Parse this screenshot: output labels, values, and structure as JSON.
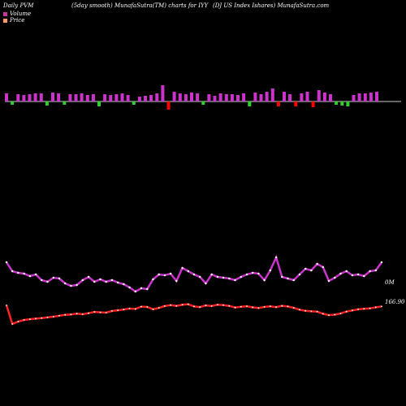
{
  "header": {
    "left": "Daily PVM",
    "center": "(5day smooth) MunafaSutra(TM) charts for IYY",
    "right": "(DJ US Index Ishares) MunafaSutra.com"
  },
  "legend": [
    {
      "label": "Volume",
      "color": "#cc3399"
    },
    {
      "label": "Price",
      "color": "#ff9966"
    }
  ],
  "chart_data": {
    "type": "bar",
    "volume_bars": {
      "heights": [
        10,
        7,
        9,
        8,
        9,
        10,
        10,
        9,
        11,
        10,
        8,
        9,
        9,
        10,
        8,
        9,
        10,
        9,
        8,
        9,
        10,
        8,
        7,
        6,
        7,
        8,
        10,
        20,
        18,
        12,
        10,
        9,
        11,
        10,
        8,
        9,
        7,
        10,
        9,
        9,
        8,
        10,
        11,
        11,
        9,
        12,
        16,
        11,
        12,
        9,
        11,
        10,
        12,
        13,
        14,
        11,
        9,
        8,
        9,
        10,
        8,
        10,
        10,
        11,
        12
      ],
      "colors": [
        "m",
        "g",
        "m",
        "m",
        "m",
        "m",
        "m",
        "g",
        "m",
        "m",
        "g",
        "m",
        "m",
        "m",
        "m",
        "m",
        "g",
        "m",
        "m",
        "m",
        "m",
        "m",
        "g",
        "m",
        "m",
        "m",
        "m",
        "m",
        "r",
        "m",
        "m",
        "m",
        "m",
        "m",
        "g",
        "m",
        "m",
        "m",
        "m",
        "m",
        "m",
        "m",
        "g",
        "m",
        "m",
        "m",
        "m",
        "r",
        "m",
        "m",
        "r",
        "m",
        "m",
        "r",
        "m",
        "m",
        "m",
        "g",
        "g",
        "g",
        "m",
        "m",
        "m",
        "m",
        "m"
      ]
    },
    "series": [
      {
        "name": "Volume",
        "values": [
          55,
          44,
          42,
          41,
          38,
          40,
          33,
          31,
          36,
          35,
          29,
          26,
          27,
          33,
          37,
          31,
          34,
          31,
          33,
          30,
          28,
          24,
          19,
          23,
          22,
          34,
          40,
          39,
          41,
          32,
          48,
          44,
          40,
          37,
          29,
          40,
          37,
          36,
          35,
          33,
          37,
          40,
          42,
          41,
          33,
          45,
          61,
          37,
          35,
          33,
          40,
          47,
          45,
          53,
          49,
          32,
          36,
          41,
          44,
          39,
          40,
          38,
          44,
          45,
          55
        ]
      },
      {
        "name": "Price",
        "values": [
          166.9,
          154.2,
          155.8,
          156.9,
          157.4,
          157.8,
          158.2,
          158.6,
          159.1,
          159.8,
          160.4,
          160.6,
          161.2,
          160.8,
          161.5,
          162.4,
          162.1,
          161.9,
          163.0,
          163.5,
          164.0,
          164.7,
          164.4,
          166.0,
          165.8,
          164.2,
          165.1,
          166.4,
          167.0,
          166.5,
          167.3,
          167.6,
          166.1,
          165.7,
          166.8,
          166.4,
          167.3,
          167.0,
          166.5,
          165.4,
          165.9,
          166.3,
          165.5,
          165.0,
          165.8,
          166.2,
          165.7,
          166.5,
          166.1,
          165.2,
          163.9,
          163.1,
          162.8,
          162.6,
          161.1,
          160.2,
          160.5,
          161.3,
          162.6,
          163.4,
          164.2,
          164.5,
          164.8,
          165.5,
          166.1
        ]
      }
    ],
    "labels": {
      "volume": "0M",
      "price": "166.90"
    },
    "axis_line": {
      "zero_level": 0
    }
  }
}
